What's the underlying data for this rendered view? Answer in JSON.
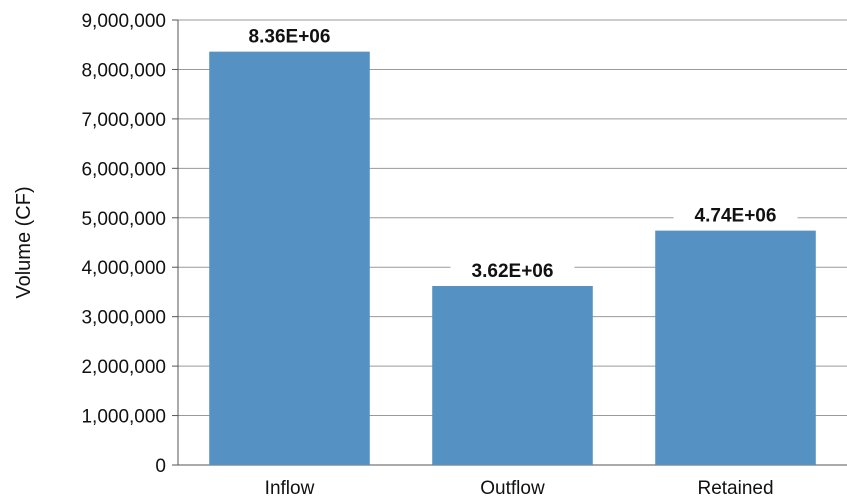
{
  "chart_data": {
    "type": "bar",
    "title": "",
    "xlabel": "",
    "ylabel": "Volume (CF)",
    "categories": [
      "Inflow",
      "Outflow",
      "Retained"
    ],
    "values": [
      8360000,
      3620000,
      4740000
    ],
    "data_labels": [
      "8.36E+06",
      "3.62E+06",
      "4.74E+06"
    ],
    "ylim": [
      0,
      9000000
    ],
    "y_ticks": [
      0,
      1000000,
      2000000,
      3000000,
      4000000,
      5000000,
      6000000,
      7000000,
      8000000,
      9000000
    ],
    "y_tick_labels": [
      "0",
      "1,000,000",
      "2,000,000",
      "3,000,000",
      "4,000,000",
      "5,000,000",
      "6,000,000",
      "7,000,000",
      "8,000,000",
      "9,000,000"
    ],
    "grid": true,
    "legend": "none",
    "colors": {
      "bar": "#5591c3",
      "grid": "#9a9a9a",
      "axis": "#555555",
      "background": "#ffffff"
    }
  }
}
